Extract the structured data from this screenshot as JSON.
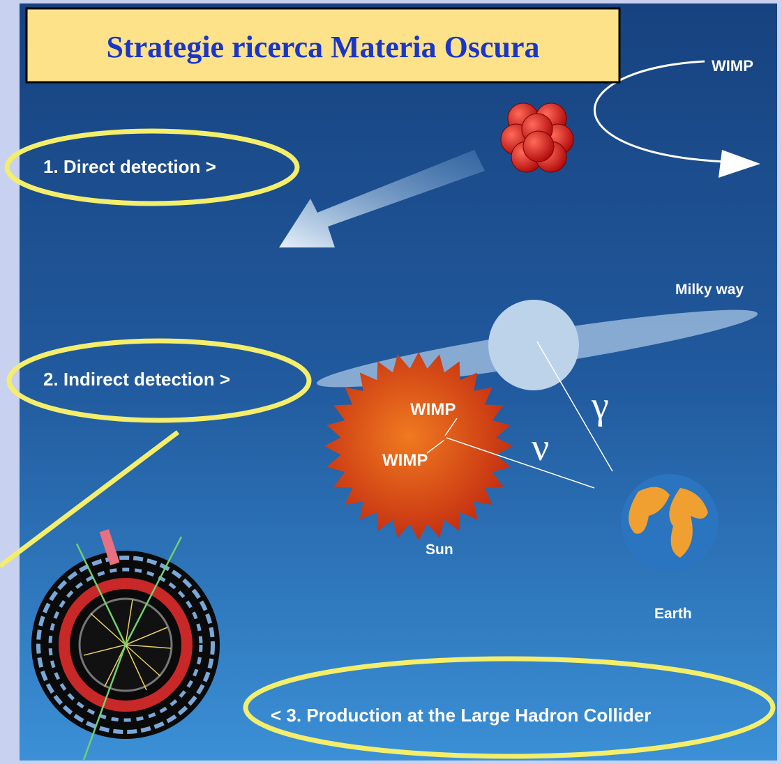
{
  "title": "Strategie ricerca Materia Oscura",
  "strategies": [
    "1. Direct detection  >",
    "2. Indirect detection  >",
    "<  3. Production at the Large Hadron Collider"
  ],
  "diagram_labels": [
    "WIMP",
    "Milky way",
    "WIMP",
    "WIMP",
    "γ",
    "ν",
    "Sun",
    "Earth"
  ]
}
